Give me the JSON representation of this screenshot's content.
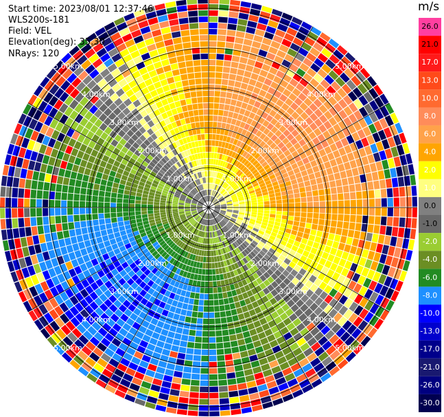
{
  "header": {
    "start_time": "Start time: 2023/08/01 12:37:46",
    "station": "WLS200s-181",
    "field": "Field: VEL",
    "elevation": "Elevation(deg): 35.30",
    "nrays": "NRays: 120"
  },
  "colorbar": {
    "unit": "m/s",
    "entries": [
      {
        "label": "26.0",
        "color": "#ff3fa0"
      },
      {
        "label": "21.0",
        "color": "#ff0000"
      },
      {
        "label": "17.0",
        "color": "#ff1a1a"
      },
      {
        "label": "13.0",
        "color": "#ff4a1a"
      },
      {
        "label": "10.0",
        "color": "#ff6a30"
      },
      {
        "label": "8.0",
        "color": "#ff8c5a"
      },
      {
        "label": "6.0",
        "color": "#ffa24a"
      },
      {
        "label": "4.0",
        "color": "#ffa500"
      },
      {
        "label": "2.0",
        "color": "#ffff00"
      },
      {
        "label": "1.0",
        "color": "#ffff80"
      },
      {
        "label": "0.0",
        "color": "#808080"
      },
      {
        "label": "-1.0",
        "color": "#696969"
      },
      {
        "label": "-2.0",
        "color": "#9acd32"
      },
      {
        "label": "-4.0",
        "color": "#6b8e23"
      },
      {
        "label": "-6.0",
        "color": "#228b22"
      },
      {
        "label": "-8.0",
        "color": "#1e90ff"
      },
      {
        "label": "-10.0",
        "color": "#0000ff"
      },
      {
        "label": "-13.0",
        "color": "#0000cd"
      },
      {
        "label": "-17.0",
        "color": "#00008b"
      },
      {
        "label": "-21.0",
        "color": "#191970"
      },
      {
        "label": "-26.0",
        "color": "#000080"
      },
      {
        "label": "-30.0",
        "color": "#000050"
      }
    ]
  },
  "chart_data": {
    "type": "heatmap",
    "projection": "polar PPI",
    "field": "VEL",
    "units": "m/s",
    "nrays": 120,
    "range_rings_km": [
      1,
      2,
      3,
      4,
      5
    ],
    "ring_labels": [
      "1.00km",
      "2.00km",
      "3.00km",
      "4.00km",
      "5.00km"
    ],
    "max_range_km": 5.9,
    "radials_deg": [
      0,
      30,
      60,
      90,
      120,
      150,
      180,
      210,
      240,
      270,
      300,
      330
    ],
    "pattern": {
      "positive_toward": "north-east",
      "negative_toward": "south-west",
      "peak_positive_ms": 8.0,
      "peak_negative_ms": -8.0,
      "noisy_beyond_km": 4.4
    }
  }
}
